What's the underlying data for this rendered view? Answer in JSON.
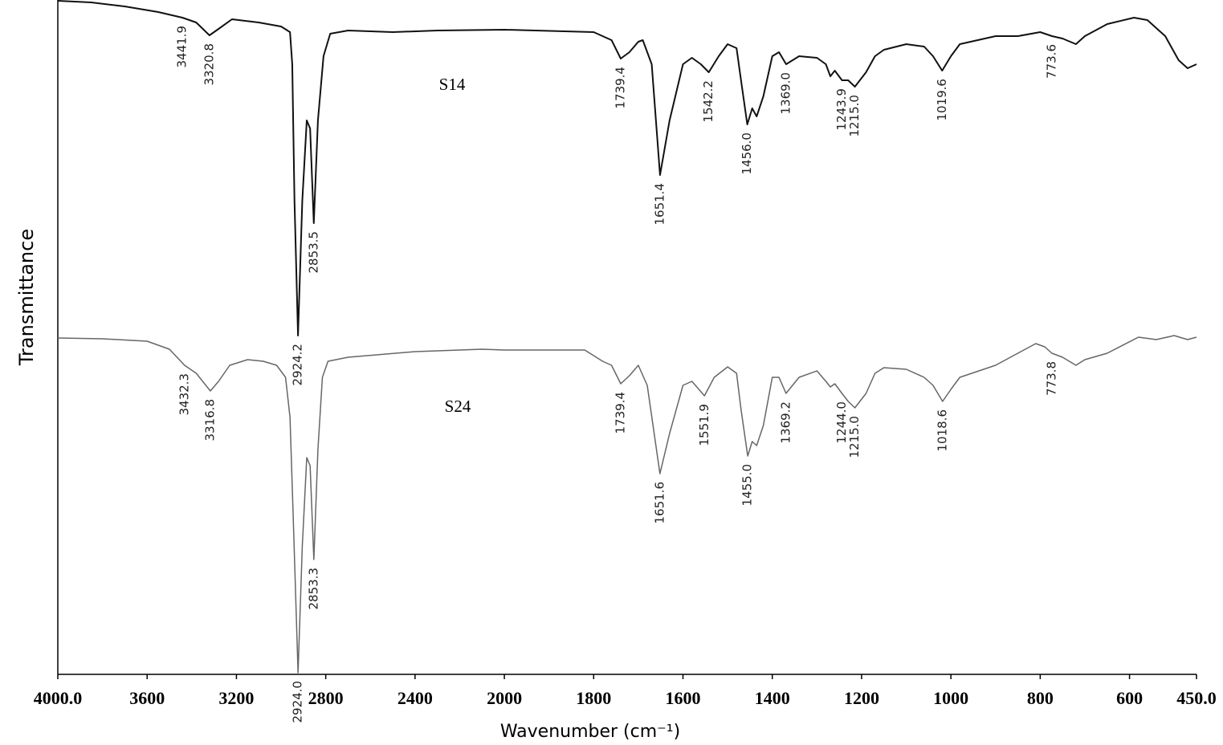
{
  "chart_data": {
    "type": "line",
    "x_label": "Wavenumber (cm⁻¹)",
    "y_label": "Transmittance",
    "xlim": [
      4000,
      450
    ],
    "ylim": [
      0,
      84
    ],
    "xticks": [
      {
        "value": 4000,
        "label": "4000.0"
      },
      3600,
      3200,
      2800,
      2400,
      2000,
      1800,
      1600,
      1400,
      1200,
      1000,
      800,
      600,
      {
        "value": 450,
        "label": "450.0"
      }
    ],
    "series": [
      {
        "name": "S14",
        "color": "#111111",
        "x": [
          4000,
          3850,
          3700,
          3550,
          3441.9,
          3380,
          3320.8,
          3280,
          3220,
          3100,
          3000,
          2960,
          2950,
          2940,
          2924.2,
          2905,
          2885,
          2870,
          2853.5,
          2835,
          2810,
          2780,
          2700,
          2500,
          2300,
          2000,
          1800,
          1760,
          1739.4,
          1720,
          1700,
          1690,
          1670,
          1651.4,
          1630,
          1600,
          1580,
          1560,
          1542.2,
          1520,
          1500,
          1480,
          1470,
          1456.0,
          1445,
          1435,
          1420,
          1400,
          1385,
          1369.0,
          1340,
          1300,
          1280,
          1270,
          1260,
          1243.9,
          1230,
          1215.0,
          1190,
          1170,
          1150,
          1100,
          1060,
          1040,
          1019.6,
          1000,
          980,
          900,
          850,
          800,
          773.6,
          750,
          720,
          700,
          650,
          590,
          560,
          520,
          490,
          470,
          450
        ],
        "values": [
          83.9,
          83.7,
          83.2,
          82.5,
          81.8,
          81.2,
          79.6,
          80.4,
          81.6,
          81.2,
          80.7,
          80,
          76,
          59,
          42.2,
          59,
          69,
          68,
          56.2,
          69,
          77,
          79.8,
          80.2,
          80,
          80.2,
          80.3,
          80,
          79,
          76.7,
          77.5,
          78.8,
          79,
          76,
          62.2,
          69,
          76,
          76.8,
          76,
          75,
          77,
          78.5,
          78,
          74,
          68.5,
          70.5,
          69.5,
          72,
          77,
          77.5,
          76,
          77,
          76.8,
          76,
          74.5,
          75.2,
          74,
          74,
          73.2,
          75,
          77,
          77.8,
          78.5,
          78.2,
          77,
          75.2,
          77,
          78.5,
          79.5,
          79.5,
          80,
          79.5,
          79.2,
          78.5,
          79.5,
          81,
          81.8,
          81.5,
          79.5,
          76.5,
          75.5,
          76
        ],
        "peaks": [
          3441.9,
          3320.8,
          2924.2,
          2853.5,
          1739.4,
          1651.4,
          1542.2,
          {
            "value": 1456,
            "label": "1456.0"
          },
          {
            "value": 1369,
            "label": "1369.0"
          },
          1243.9,
          {
            "value": 1215,
            "label": "1215.0"
          },
          1019.6,
          773.6
        ]
      },
      {
        "name": "S24",
        "color": "#666666",
        "x": [
          4000,
          3800,
          3600,
          3500,
          3432.3,
          3380,
          3316.8,
          3280,
          3230,
          3150,
          3080,
          3020,
          2980,
          2960,
          2945,
          2924.0,
          2905,
          2885,
          2870,
          2853.3,
          2835,
          2815,
          2790,
          2700,
          2400,
          2100,
          2000,
          1820,
          1780,
          1760,
          1739.4,
          1720,
          1700,
          1680,
          1651.6,
          1630,
          1600,
          1580,
          1551.9,
          1530,
          1500,
          1480,
          1470,
          1455.0,
          1445,
          1435,
          1420,
          1400,
          1385,
          1369.2,
          1340,
          1300,
          1280,
          1270,
          1260,
          1244.0,
          1230,
          1215.0,
          1190,
          1170,
          1150,
          1100,
          1060,
          1040,
          1018.6,
          1000,
          980,
          900,
          850,
          810,
          790,
          773.8,
          750,
          720,
          700,
          650,
          580,
          540,
          500,
          470,
          450
        ],
        "values": [
          41.9,
          41.8,
          41.5,
          40.5,
          38.5,
          37.5,
          35.3,
          36.5,
          38.5,
          39.2,
          39,
          38.5,
          37,
          32,
          19,
          0.2,
          16,
          27,
          26,
          14.3,
          28,
          37,
          39,
          39.5,
          40.2,
          40.5,
          40.4,
          40.4,
          39,
          38.5,
          36.2,
          37.2,
          38.5,
          36,
          25,
          30,
          36,
          36.5,
          34.7,
          37,
          38.3,
          37.5,
          33,
          27.2,
          29,
          28.5,
          31,
          37,
          37,
          35,
          37,
          37.8,
          36.5,
          35.8,
          36.2,
          35,
          34,
          33.2,
          35,
          37.5,
          38.2,
          38,
          37,
          36,
          34,
          35.5,
          37,
          38.5,
          40,
          41.2,
          40.8,
          40,
          39.5,
          38.5,
          39.2,
          40,
          42,
          41.7,
          42.2,
          41.7,
          42
        ],
        "peaks": [
          3432.3,
          3316.8,
          {
            "value": 2924,
            "label": "2924.0"
          },
          2853.3,
          1739.4,
          1651.6,
          1551.9,
          {
            "value": 1455,
            "label": "1455.0"
          },
          1369.2,
          {
            "value": 1244,
            "label": "1244.0"
          },
          {
            "value": 1215,
            "label": "1215.0"
          },
          1018.6,
          773.8
        ]
      }
    ]
  }
}
